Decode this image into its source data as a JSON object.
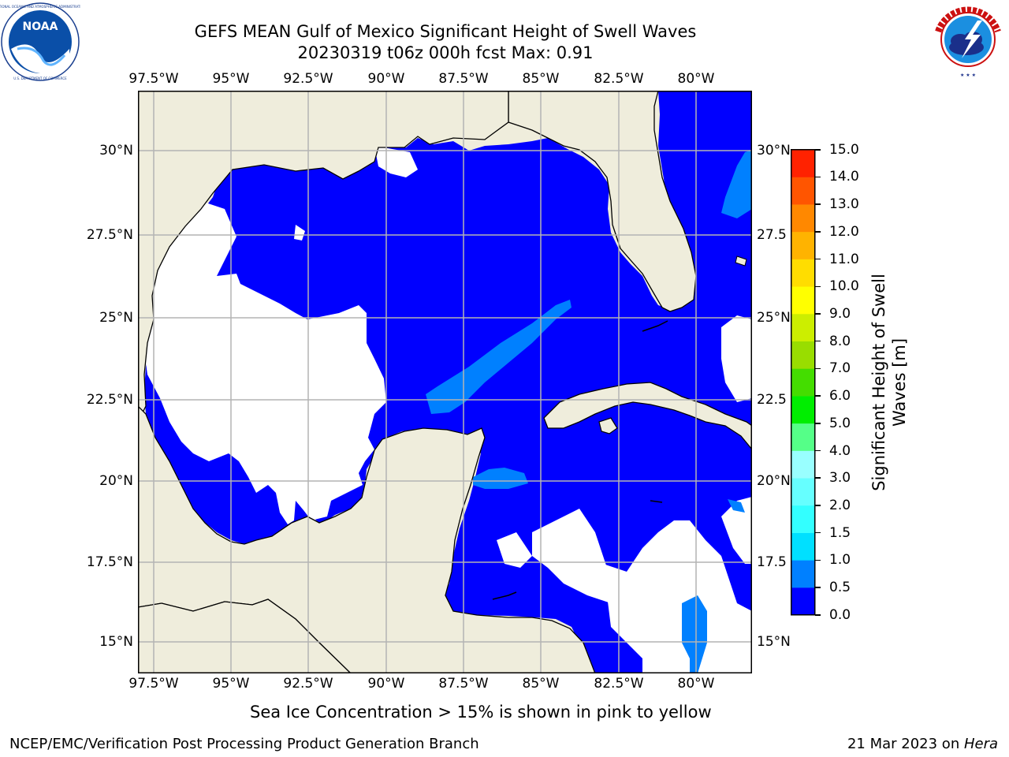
{
  "title": {
    "line1": "GEFS MEAN Gulf of Mexico Significant Height of Swell Waves",
    "line2": "20230319 t06z 000h fcst   Max: 0.91"
  },
  "logos": {
    "left_icon": "noaa-logo-icon",
    "left_text": "NOAA",
    "left_ring_text": "NATIONAL OCEANIC AND ATMOSPHERIC ADMINISTRATION · U.S. DEPARTMENT OF COMMERCE",
    "right_icon": "nws-logo-icon",
    "right_ring_text": "NATIONAL WEATHER SERVICE"
  },
  "map": {
    "lon_range": [
      -98.0,
      -78.0
    ],
    "lat_range": [
      14.0,
      31.5
    ],
    "lon_ticks": [
      "97.5°W",
      "95°W",
      "92.5°W",
      "90°W",
      "87.5°W",
      "85°W",
      "82.5°W",
      "80°W"
    ],
    "lat_ticks": [
      "30°N",
      "27.5°N",
      "25°N",
      "22.5°N",
      "20°N",
      "17.5°N",
      "15°N"
    ],
    "lat_ticks_right": [
      "30°N",
      "27.5",
      "25°N",
      "22.5",
      "20°N",
      "17.5",
      "15°N"
    ],
    "grid": true,
    "colors": {
      "land": "#efeddc",
      "no_data": "#ffffff",
      "coast": "#000000",
      "grid": "#b4b4b4"
    }
  },
  "colorbar": {
    "label": "Significant Height of Swell Waves [m]",
    "label_line1": "Significant Height of Swell",
    "label_line2": "Waves [m]",
    "ticks": [
      "0.0",
      "0.5",
      "1.0",
      "1.5",
      "2.0",
      "3.0",
      "4.0",
      "5.0",
      "6.0",
      "7.0",
      "8.0",
      "9.0",
      "10.0",
      "11.0",
      "12.0",
      "13.0",
      "14.0",
      "15.0"
    ],
    "colors": [
      "#0000ff",
      "#0080ff",
      "#00e0ff",
      "#33ffff",
      "#66ffff",
      "#99ffff",
      "#55ff88",
      "#00ee00",
      "#44dd00",
      "#99dd00",
      "#ccee00",
      "#ffff00",
      "#ffdd00",
      "#ffb300",
      "#ff8800",
      "#ff5500",
      "#ff2200"
    ]
  },
  "note": "Sea Ice Concentration > 15% is shown in pink to yellow",
  "footer": {
    "left": "NCEP/EMC/Verification Post Processing Product Generation Branch",
    "right_date": "21 Mar 2023 on ",
    "right_host": "Hera"
  }
}
